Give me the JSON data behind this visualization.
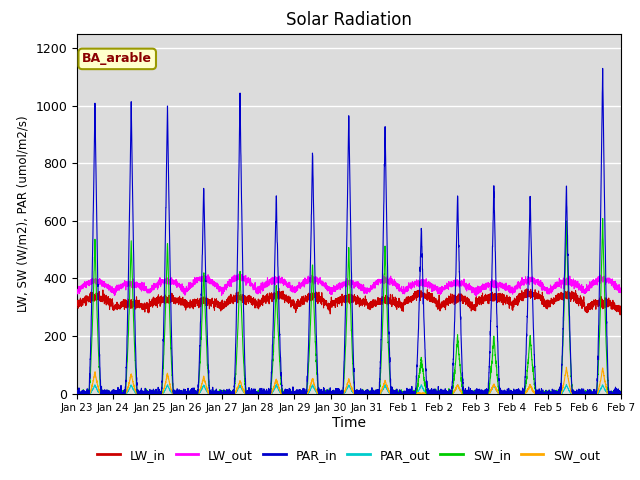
{
  "title": "Solar Radiation",
  "xlabel": "Time",
  "ylabel": "LW, SW (W/m2), PAR (umol/m2/s)",
  "annotation": "BA_arable",
  "ylim": [
    0,
    1250
  ],
  "background_color": "#dcdcdc",
  "series": {
    "LW_in": {
      "color": "#cc0000",
      "lw": 0.8
    },
    "LW_out": {
      "color": "#ff00ff",
      "lw": 0.8
    },
    "PAR_in": {
      "color": "#0000cc",
      "lw": 0.8
    },
    "PAR_out": {
      "color": "#00cccc",
      "lw": 0.8
    },
    "SW_in": {
      "color": "#00cc00",
      "lw": 0.8
    },
    "SW_out": {
      "color": "#ffaa00",
      "lw": 0.8
    }
  },
  "xtick_labels": [
    "Jan 23",
    "Jan 24",
    "Jan 25",
    "Jan 26",
    "Jan 27",
    "Jan 28",
    "Jan 29",
    "Jan 30",
    "Jan 31",
    "Feb 1",
    "Feb 2",
    "Feb 3",
    "Feb 4",
    "Feb 5",
    "Feb 6",
    "Feb 7"
  ],
  "ytick_labels": [
    0,
    200,
    400,
    600,
    800,
    1000,
    1200
  ],
  "n_days": 15,
  "points_per_day": 288,
  "par_in_peaks": [
    1010,
    1010,
    1010,
    730,
    1040,
    690,
    850,
    980,
    940,
    590,
    700,
    730,
    695,
    725,
    1140
  ],
  "sw_in_peaks": [
    530,
    530,
    530,
    430,
    430,
    380,
    450,
    510,
    520,
    120,
    200,
    200,
    200,
    600,
    600
  ],
  "sw_out_peaks": [
    75,
    70,
    70,
    60,
    45,
    50,
    55,
    50,
    45,
    0,
    30,
    35,
    30,
    90,
    90
  ],
  "par_out_max": 30,
  "lw_in_base": 300,
  "lw_out_base": 355
}
